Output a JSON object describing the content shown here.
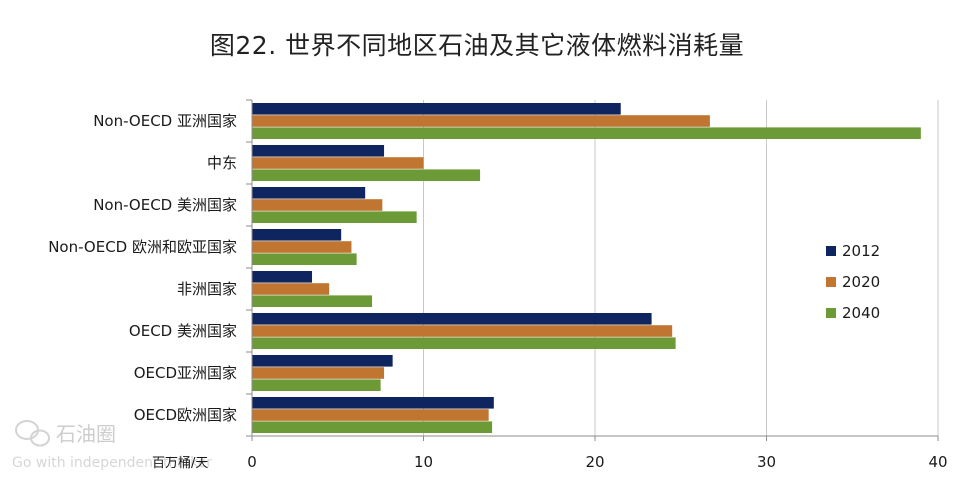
{
  "chart_data": {
    "type": "bar",
    "orientation": "horizontal",
    "title": "图22. 世界不同地区石油及其它液体燃料消耗量",
    "unit_label": "百万桶/天",
    "categories": [
      "Non-OECD 亚洲国家",
      "中东",
      "Non-OECD 美洲国家",
      "Non-OECD 欧洲和欧亚国家",
      "非洲国家",
      "OECD 美洲国家",
      "OECD亚洲国家",
      "OECD欧洲国家"
    ],
    "series": [
      {
        "name": "2012",
        "color": "#0f2560",
        "values": [
          21.5,
          7.7,
          6.6,
          5.2,
          3.5,
          23.3,
          8.2,
          14.1
        ]
      },
      {
        "name": "2020",
        "color": "#c07530",
        "values": [
          26.7,
          10.0,
          7.6,
          5.8,
          4.5,
          24.5,
          7.7,
          13.8
        ]
      },
      {
        "name": "2040",
        "color": "#6c9a36",
        "values": [
          39.0,
          13.3,
          9.6,
          6.1,
          7.0,
          24.7,
          7.5,
          14.0
        ]
      }
    ],
    "xlim": [
      0,
      40
    ],
    "xticks": [
      "0",
      "10",
      "20",
      "30",
      "40"
    ],
    "grid": "vertical",
    "legend_position": "right"
  },
  "watermark": {
    "text": "石油圈",
    "subtext": "Go with independent thinker"
  }
}
